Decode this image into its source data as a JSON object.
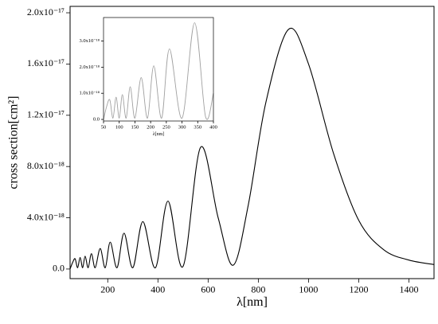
{
  "chart_data": [
    {
      "type": "line",
      "xlabel": "λ[nm]",
      "ylabel": "cross section[cm²]",
      "x": [
        50,
        60,
        70,
        80,
        90,
        100,
        110,
        122,
        135,
        150,
        170,
        190,
        210,
        237,
        265,
        300,
        340,
        390,
        440,
        500,
        570,
        640,
        700,
        760,
        830,
        920,
        1000,
        1100,
        1200,
        1300,
        1400,
        1500
      ],
      "series": [
        {
          "name": "cross section",
          "color": "#000000",
          "values": [
            0,
            5e-19,
            8e-19,
            1e-19,
            9e-19,
            1e-19,
            1e-18,
            1e-19,
            1.2e-18,
            1e-19,
            1.6e-18,
            1e-19,
            2.1e-18,
            1e-19,
            2.8e-18,
            1e-19,
            3.7e-18,
            1e-19,
            5.3e-18,
            2e-19,
            9.5e-18,
            4e-18,
            3e-19,
            5e-18,
            1.3e-17,
            1.87e-17,
            1.6e-17,
            9e-18,
            3.8e-18,
            1.5e-18,
            7e-19,
            3.5e-19
          ]
        }
      ],
      "xlim": [
        50,
        1500
      ],
      "xticks": [
        200,
        400,
        600,
        800,
        1000,
        1200,
        1400
      ],
      "ylim": [
        -7.5e-19,
        2.05e-17
      ],
      "yticks": [
        {
          "value": 0,
          "label": "0.0"
        },
        {
          "value": 4e-18,
          "label": "4.0x10⁻¹⁸"
        },
        {
          "value": 8e-18,
          "label": "8.0x10⁻¹⁸"
        },
        {
          "value": 1.2e-17,
          "label": "1.2x10⁻¹⁷"
        },
        {
          "value": 1.6e-17,
          "label": "1.6x10⁻¹⁷"
        },
        {
          "value": 2e-17,
          "label": "2.0x10⁻¹⁷"
        }
      ]
    },
    {
      "type": "line",
      "xlabel": "λ[nm]",
      "x": [
        50,
        60,
        70,
        80,
        90,
        100,
        110,
        122,
        135,
        150,
        170,
        190,
        210,
        235,
        260,
        300,
        340,
        375,
        400
      ],
      "series": [
        {
          "name": "inset",
          "color": "#a0a0a0",
          "values": [
            0,
            5e-19,
            7.5e-19,
            5e-20,
            8.5e-19,
            5e-20,
            9.5e-19,
            5e-20,
            1.25e-18,
            5e-20,
            1.6e-18,
            5e-20,
            2.05e-18,
            5e-20,
            2.7e-18,
            5e-20,
            3.7e-18,
            1e-19,
            1e-18
          ]
        }
      ],
      "xlim": [
        50,
        400
      ],
      "xticks": [
        50,
        100,
        150,
        200,
        250,
        300,
        350,
        400
      ],
      "ylim": [
        -6e-20,
        3.9e-18
      ],
      "yticks": [
        {
          "value": 0,
          "label": "0.0"
        },
        {
          "value": 1e-18,
          "label": "1.0x10⁻¹⁸"
        },
        {
          "value": 2e-18,
          "label": "2.0x10⁻¹⁸"
        },
        {
          "value": 3e-18,
          "label": "3.0x10⁻¹⁸"
        }
      ]
    }
  ]
}
